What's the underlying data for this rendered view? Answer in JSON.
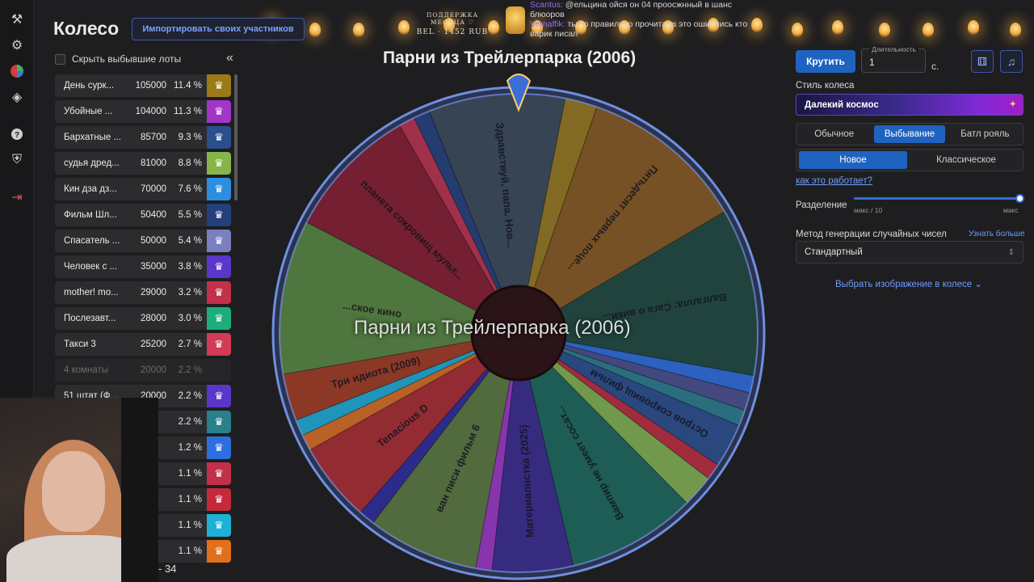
{
  "header": {
    "title": "Колесо",
    "import_button": "Импортировать своих участников"
  },
  "sidebar": {
    "icons": [
      "hammer-icon",
      "gear-icon",
      "wheel-icon",
      "layers-icon",
      "help-icon",
      "shield-icon",
      "logout-icon"
    ]
  },
  "stream_overlay": {
    "support_line1": "ПОДДЕРЖКА МЕСЯЦА ♡",
    "support_line2": "BEL · 1452 RUB",
    "chat": [
      {
        "nick": "Scantus:",
        "text": "@ельцина ойся он 04 проосжнный в шанс"
      },
      {
        "nick": "",
        "text": "блюоров"
      },
      {
        "nick": "Vernaffik:",
        "text": "ты то правильно прочитала это ошиблись кто"
      },
      {
        "nick": "",
        "text": "варик писал"
      }
    ]
  },
  "lots_panel": {
    "hide_label": "Скрыть выбывшие лоты",
    "collapse": "«",
    "lots": [
      {
        "name": "День сурк...",
        "amount": "105000",
        "pct": "11.4 %",
        "color": "#9b7a17",
        "out": false
      },
      {
        "name": "Убойные ...",
        "amount": "104000",
        "pct": "11.3 %",
        "color": "#a236c8",
        "out": false
      },
      {
        "name": "Бархатные ...",
        "amount": "85700",
        "pct": "9.3 %",
        "color": "#2a4f8c",
        "out": false
      },
      {
        "name": "судья дред...",
        "amount": "81000",
        "pct": "8.8 %",
        "color": "#86b54a",
        "out": false
      },
      {
        "name": "Кин дза дз...",
        "amount": "70000",
        "pct": "7.6 %",
        "color": "#2d8ee0",
        "out": false
      },
      {
        "name": "Фильм Шл...",
        "amount": "50400",
        "pct": "5.5 %",
        "color": "#243f7a",
        "out": false
      },
      {
        "name": "Спасатель ...",
        "amount": "50000",
        "pct": "5.4 %",
        "color": "#7b7fbf",
        "out": false
      },
      {
        "name": "Человек с ...",
        "amount": "35000",
        "pct": "3.8 %",
        "color": "#5a36c9",
        "out": false
      },
      {
        "name": "mother! mo...",
        "amount": "29000",
        "pct": "3.2 %",
        "color": "#c3304a",
        "out": false
      },
      {
        "name": "Послезавт...",
        "amount": "28000",
        "pct": "3.0 %",
        "color": "#1cae7a",
        "out": false
      },
      {
        "name": "Такси 3",
        "amount": "25200",
        "pct": "2.7 %",
        "color": "#d23a55",
        "out": false
      },
      {
        "name": "4 комнаты",
        "amount": "20000",
        "pct": "2.2 %",
        "color": "#262628",
        "out": true
      },
      {
        "name": "51 штат (Ф...",
        "amount": "20000",
        "pct": "2.2 %",
        "color": "#5a36c9",
        "out": false
      },
      {
        "name": "",
        "amount": "",
        "pct": "2.2 %",
        "color": "#2a7f8c",
        "out": false
      },
      {
        "name": "",
        "amount": "",
        "pct": "1.2 %",
        "color": "#2d6fe0",
        "out": false
      },
      {
        "name": "",
        "amount": "",
        "pct": "1.1 %",
        "color": "#c3304a",
        "out": false
      },
      {
        "name": "",
        "amount": "",
        "pct": "1.1 %",
        "color": "#c42a3a",
        "out": false
      },
      {
        "name": "",
        "amount": "",
        "pct": "1.1 %",
        "color": "#1fb0d8",
        "out": false
      },
      {
        "name": "",
        "amount": "",
        "pct": "1.1 %",
        "color": "#e0701c",
        "out": false
      }
    ]
  },
  "webcam_caption": "- 34",
  "wheel": {
    "title": "Парни из Трейлерпарка (2006)",
    "center_label": "Парни из Трейлерпарка (2006)",
    "segments": [
      {
        "label": "Здравствуй, папа. Нов...",
        "color": "#3a4a56",
        "value": 9.3
      },
      {
        "label": "",
        "color": "#9b7a17",
        "value": 2.2
      },
      {
        "label": "Пятьдесят первых поце...",
        "color": "#8a5a1a",
        "value": 11.3
      },
      {
        "label": "Валгалла: Сага о вики...",
        "color": "#1e4a38",
        "value": 11.4
      },
      {
        "label": "",
        "color": "#2d6fe0",
        "value": 1.2
      },
      {
        "label": "",
        "color": "#4a4f8c",
        "value": 1.2
      },
      {
        "label": "",
        "color": "#2a7f8c",
        "value": 1.1
      },
      {
        "label": "Остров сокровищ фильм",
        "color": "#2a4f8c",
        "value": 3.0
      },
      {
        "label": "",
        "color": "#c42a3a",
        "value": 1.1
      },
      {
        "label": "",
        "color": "#86b54a",
        "value": 2.2
      },
      {
        "label": "Вампир не умеет сосат...",
        "color": "#1a6a58",
        "value": 8.8
      },
      {
        "label": "Материалистка (2025)",
        "color": "#3b2a8e",
        "value": 5.5
      },
      {
        "label": "",
        "color": "#a236c8",
        "value": 1.1
      },
      {
        "label": "ван писи фильм 6",
        "color": "#5c7a3a",
        "value": 7.6
      },
      {
        "label": "",
        "color": "#2d2a9e",
        "value": 1.1
      },
      {
        "label": "Tenacious D",
        "color": "#b02a2a",
        "value": 5.4
      },
      {
        "label": "",
        "color": "#e0701c",
        "value": 1.1
      },
      {
        "label": "",
        "color": "#1fb0d8",
        "value": 1.1
      },
      {
        "label": "Три идиота (2009)",
        "color": "#a83a1c",
        "value": 3.2
      },
      {
        "label": "...ское кино",
        "color": "#5a8a3a",
        "value": 10.5
      },
      {
        "label": "планета сокровищ мульт...",
        "color": "#8a1a2a",
        "value": 9.1
      },
      {
        "label": "",
        "color": "#c3304a",
        "value": 1.1
      },
      {
        "label": "",
        "color": "#243f7a",
        "value": 1.1
      }
    ]
  },
  "controls": {
    "spin_button": "Крутить",
    "duration_label": "Длительность",
    "duration_value": "1",
    "duration_unit": "с.",
    "dice_icon": "dice-icon",
    "music_icon": "music-icon",
    "style_label": "Стиль колеса",
    "style_value": "Далекий космос",
    "modes": [
      "Обычное",
      "Выбывание",
      "Батл рояль"
    ],
    "active_mode": "Выбывание",
    "variants": [
      "Новое",
      "Классическое"
    ],
    "active_variant": "Новое",
    "how_link": "как это работает?",
    "split_label": "Разделение",
    "slider_min": "макс / 10",
    "slider_max": "макс",
    "slider_value": 1.0,
    "rng_label": "Метод генерации случайных чисел",
    "rng_more": "Узнать больше",
    "rng_value": "Стандартный",
    "choose_image": "Выбрать изображение в колесе"
  }
}
